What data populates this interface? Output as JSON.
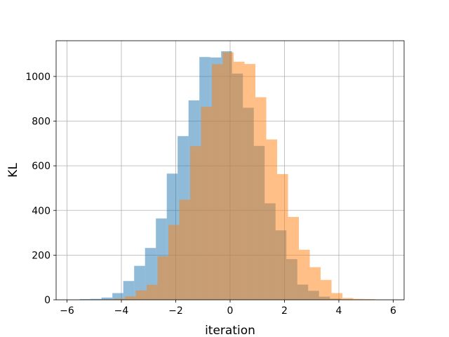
{
  "chart_data": {
    "type": "bar",
    "subtype": "overlapping-histogram",
    "xlabel": "iteration",
    "ylabel": "KL",
    "xlim": [
      -6.4,
      6.4
    ],
    "ylim": [
      0,
      1160
    ],
    "xticks": [
      -6,
      -4,
      -2,
      0,
      2,
      4,
      6
    ],
    "xtick_labels": [
      "−6",
      "−4",
      "−2",
      "0",
      "2",
      "4",
      "6"
    ],
    "yticks": [
      0,
      200,
      400,
      600,
      800,
      1000
    ],
    "ytick_labels": [
      "0",
      "200",
      "400",
      "600",
      "800",
      "1000"
    ],
    "grid": true,
    "legend": "none",
    "series": [
      {
        "color": "#1f77b4",
        "opacity": 0.5,
        "bins": [
          {
            "x0": -5.53,
            "x1": -5.13,
            "value": 3
          },
          {
            "x0": -5.13,
            "x1": -4.73,
            "value": 4
          },
          {
            "x0": -4.73,
            "x1": -4.33,
            "value": 10
          },
          {
            "x0": -4.33,
            "x1": -3.93,
            "value": 30
          },
          {
            "x0": -3.93,
            "x1": -3.53,
            "value": 84
          },
          {
            "x0": -3.53,
            "x1": -3.13,
            "value": 152
          },
          {
            "x0": -3.13,
            "x1": -2.73,
            "value": 232
          },
          {
            "x0": -2.73,
            "x1": -2.33,
            "value": 364
          },
          {
            "x0": -2.33,
            "x1": -1.93,
            "value": 565
          },
          {
            "x0": -1.93,
            "x1": -1.53,
            "value": 733
          },
          {
            "x0": -1.53,
            "x1": -1.13,
            "value": 893
          },
          {
            "x0": -1.13,
            "x1": -0.73,
            "value": 1087
          },
          {
            "x0": -0.73,
            "x1": -0.33,
            "value": 1085
          },
          {
            "x0": -0.33,
            "x1": 0.07,
            "value": 1113
          },
          {
            "x0": 0.07,
            "x1": 0.47,
            "value": 1013
          },
          {
            "x0": 0.47,
            "x1": 0.87,
            "value": 860
          },
          {
            "x0": 0.87,
            "x1": 1.27,
            "value": 689
          },
          {
            "x0": 1.27,
            "x1": 1.67,
            "value": 432
          },
          {
            "x0": 1.67,
            "x1": 2.07,
            "value": 311
          },
          {
            "x0": 2.07,
            "x1": 2.47,
            "value": 182
          },
          {
            "x0": 2.47,
            "x1": 2.87,
            "value": 68
          },
          {
            "x0": 2.87,
            "x1": 3.27,
            "value": 40
          },
          {
            "x0": 3.27,
            "x1": 3.67,
            "value": 14
          },
          {
            "x0": 3.67,
            "x1": 4.07,
            "value": 5
          },
          {
            "x0": 4.07,
            "x1": 4.47,
            "value": 2
          }
        ]
      },
      {
        "color": "#ff7f0e",
        "opacity": 0.5,
        "bins": [
          {
            "x0": -4.67,
            "x1": -4.27,
            "value": 2
          },
          {
            "x0": -4.27,
            "x1": -3.87,
            "value": 6
          },
          {
            "x0": -3.87,
            "x1": -3.47,
            "value": 15
          },
          {
            "x0": -3.47,
            "x1": -3.07,
            "value": 42
          },
          {
            "x0": -3.07,
            "x1": -2.67,
            "value": 67
          },
          {
            "x0": -2.67,
            "x1": -2.27,
            "value": 195
          },
          {
            "x0": -2.27,
            "x1": -1.87,
            "value": 335
          },
          {
            "x0": -1.87,
            "x1": -1.47,
            "value": 448
          },
          {
            "x0": -1.47,
            "x1": -1.07,
            "value": 688
          },
          {
            "x0": -1.07,
            "x1": -0.67,
            "value": 864
          },
          {
            "x0": -0.67,
            "x1": -0.27,
            "value": 1055
          },
          {
            "x0": -0.27,
            "x1": 0.13,
            "value": 1108
          },
          {
            "x0": 0.13,
            "x1": 0.53,
            "value": 1066
          },
          {
            "x0": 0.53,
            "x1": 0.93,
            "value": 1056
          },
          {
            "x0": 0.93,
            "x1": 1.33,
            "value": 907
          },
          {
            "x0": 1.33,
            "x1": 1.73,
            "value": 718
          },
          {
            "x0": 1.73,
            "x1": 2.13,
            "value": 563
          },
          {
            "x0": 2.13,
            "x1": 2.53,
            "value": 371
          },
          {
            "x0": 2.53,
            "x1": 2.93,
            "value": 224
          },
          {
            "x0": 2.93,
            "x1": 3.33,
            "value": 146
          },
          {
            "x0": 3.33,
            "x1": 3.73,
            "value": 89
          },
          {
            "x0": 3.73,
            "x1": 4.13,
            "value": 30
          },
          {
            "x0": 4.13,
            "x1": 4.53,
            "value": 8
          },
          {
            "x0": 4.53,
            "x1": 4.93,
            "value": 4
          },
          {
            "x0": 4.93,
            "x1": 5.33,
            "value": 3
          }
        ]
      }
    ]
  }
}
